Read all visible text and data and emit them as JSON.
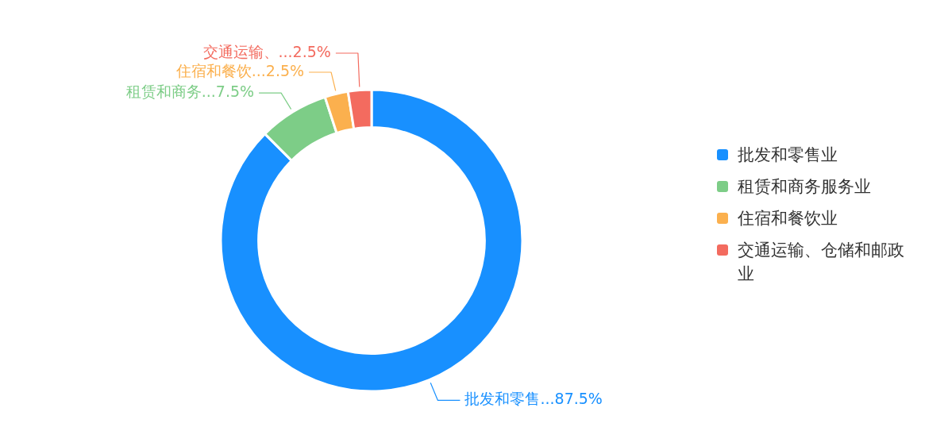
{
  "chart_data": {
    "type": "donut",
    "categories": [
      "批发和零售业",
      "租赁和商务服务业",
      "住宿和餐饮业",
      "交通运输、仓储和邮政业"
    ],
    "values": [
      87.5,
      7.5,
      2.5,
      2.5
    ],
    "colors": [
      "#1890ff",
      "#7dcd87",
      "#fbb04e",
      "#f36b5f"
    ],
    "annotations": [
      {
        "text": "批发和零售...87.5%",
        "x": "批发和零售业"
      },
      {
        "text": "租赁和商务...7.5%",
        "x": "租赁和商务服务业"
      },
      {
        "text": "住宿和餐饮...2.5%",
        "x": "住宿和餐饮业"
      },
      {
        "text": "交通运输、...2.5%",
        "x": "交通运输、仓储和邮政业"
      }
    ],
    "legend": "right"
  }
}
